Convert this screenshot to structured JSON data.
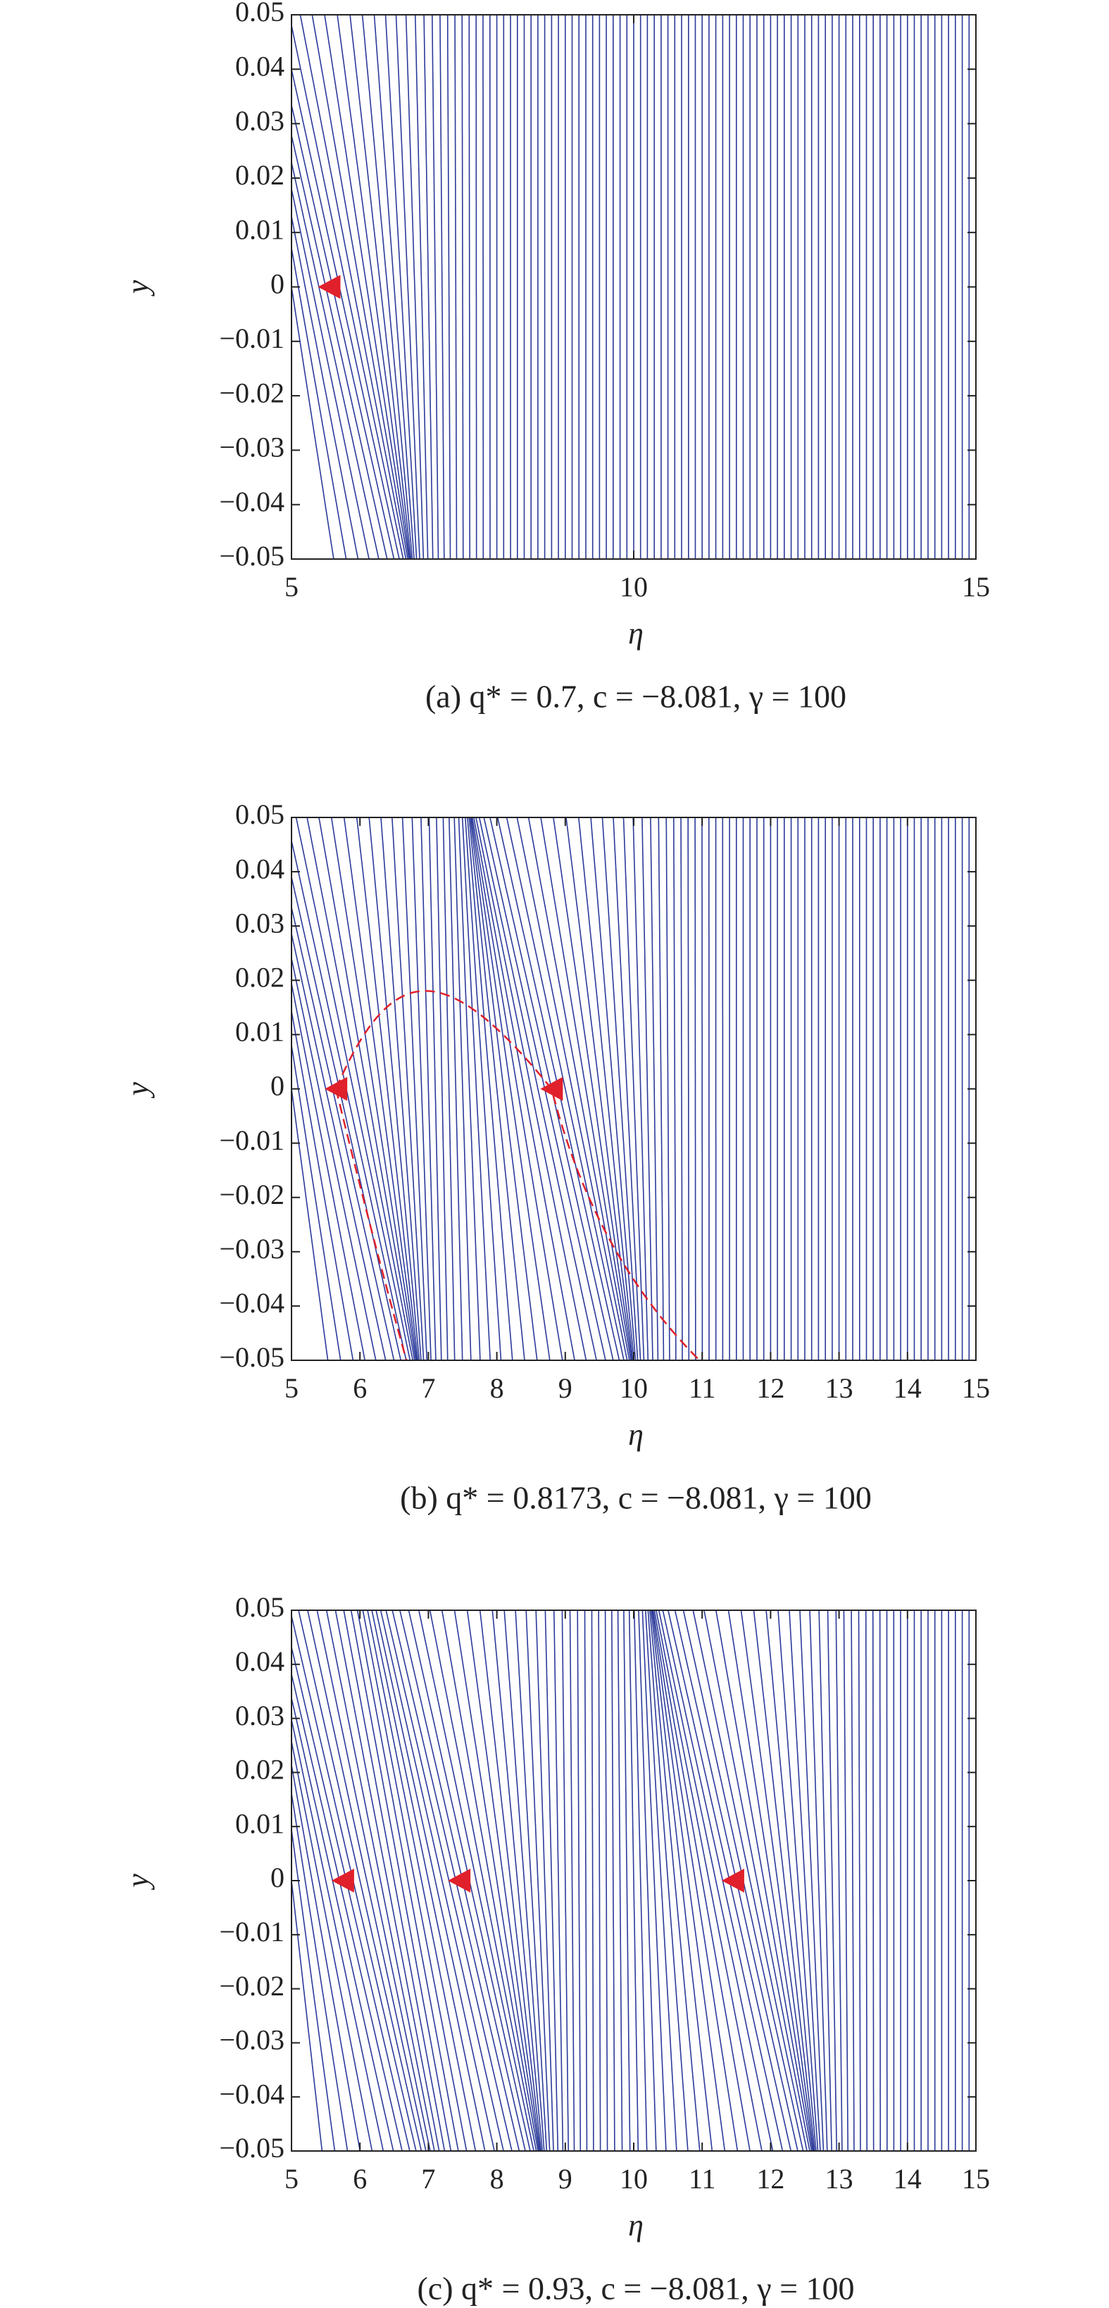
{
  "chart_data": [
    {
      "type": "scatter",
      "caption": "(a) q* = 0.7, c = −8.081, γ = 100",
      "x_label": "η",
      "y_label": "y",
      "x": [
        5.55
      ],
      "values": [
        0
      ],
      "color": "#e0202a",
      "line_color": "#2b3a9a",
      "xlim": [
        5,
        15
      ],
      "xticks": [
        5,
        10,
        15
      ],
      "ylim": [
        -0.05,
        0.05
      ],
      "yticks": [
        {
          "value": -0.05,
          "label": "−0.05"
        },
        {
          "value": -0.04,
          "label": "−0.04"
        },
        {
          "value": -0.03,
          "label": "−0.03"
        },
        {
          "value": -0.02,
          "label": "−0.02"
        },
        {
          "value": -0.01,
          "label": "−0.01"
        },
        0,
        0.01,
        0.02,
        0.03,
        0.04,
        0.05
      ]
    },
    {
      "type": "scatter",
      "caption": "(b) q* = 0.8173, c = −8.081, γ = 100",
      "x_label": "η",
      "y_label": "y",
      "x": [
        5.65,
        8.8
      ],
      "values": [
        0,
        0
      ],
      "color": "#e0202a",
      "line_color": "#2b3a9a",
      "xlim": [
        5,
        15
      ],
      "xticks": [
        5,
        6,
        7,
        8,
        9,
        10,
        11,
        12,
        13,
        14,
        15
      ],
      "ylim": [
        -0.05,
        0.05
      ],
      "yticks": [
        {
          "value": -0.05,
          "label": "−0.05"
        },
        {
          "value": -0.04,
          "label": "−0.04"
        },
        {
          "value": -0.03,
          "label": "−0.03"
        },
        {
          "value": -0.02,
          "label": "−0.02"
        },
        {
          "value": -0.01,
          "label": "−0.01"
        },
        0,
        0.01,
        0.02,
        0.03,
        0.04,
        0.05
      ]
    },
    {
      "type": "scatter",
      "caption": "(c) q* = 0.93, c = −8.081, γ = 100",
      "x_label": "η",
      "y_label": "y",
      "x": [
        5.75,
        7.45,
        11.45
      ],
      "values": [
        0,
        0,
        0
      ],
      "color": "#e0202a",
      "line_color": "#2b3a9a",
      "xlim": [
        5,
        15
      ],
      "xticks": [
        5,
        6,
        7,
        8,
        9,
        10,
        11,
        12,
        13,
        14,
        15
      ],
      "ylim": [
        -0.05,
        0.05
      ],
      "yticks": [
        {
          "value": -0.05,
          "label": "−0.05"
        },
        {
          "value": -0.04,
          "label": "−0.04"
        },
        {
          "value": -0.03,
          "label": "−0.03"
        },
        {
          "value": -0.02,
          "label": "−0.02"
        },
        {
          "value": -0.01,
          "label": "−0.01"
        },
        0,
        0.01,
        0.02,
        0.03,
        0.04,
        0.05
      ]
    }
  ]
}
